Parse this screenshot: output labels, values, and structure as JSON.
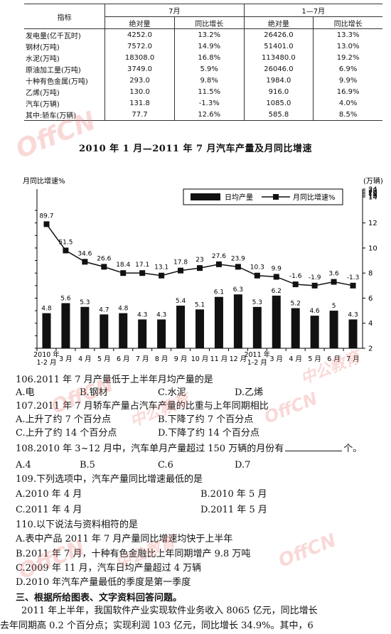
{
  "table": {
    "header": {
      "indicator": "指标",
      "group_july": "7月",
      "group_jan_jul": "1—7月",
      "abs": "绝对量",
      "yoy": "同比增长"
    },
    "rows": [
      {
        "name": "发电量(亿千瓦时)",
        "jul": "4252.0",
        "jul_g": "13.2%",
        "ytd": "26426.0",
        "ytd_g": "13.3%"
      },
      {
        "name": "钢材(万吨)",
        "jul": "7572.0",
        "jul_g": "14.9%",
        "ytd": "51401.0",
        "ytd_g": "13.0%"
      },
      {
        "name": "水泥(万吨)",
        "jul": "18308.0",
        "jul_g": "16.8%",
        "ytd": "113480.0",
        "ytd_g": "19.2%"
      },
      {
        "name": "原油加工量(万吨)",
        "jul": "3749.0",
        "jul_g": "5.9%",
        "ytd": "26046.0",
        "ytd_g": "6.9%"
      },
      {
        "name": "十种有色金属(万吨)",
        "jul": "293.0",
        "jul_g": "9.8%",
        "ytd": "1984.0",
        "ytd_g": "9.9%"
      },
      {
        "name": "乙烯(万吨)",
        "jul": "130.0",
        "jul_g": "11.5%",
        "ytd": "916.0",
        "ytd_g": "16.9%"
      },
      {
        "name": "汽车(万辆)",
        "jul": "131.8",
        "jul_g": "-1.3%",
        "ytd": "1085.0",
        "ytd_g": "4.0%"
      },
      {
        "name": "其中:轿车(万辆)",
        "jul": "77.7",
        "jul_g": "12.6%",
        "ytd": "585.8",
        "ytd_g": "8.5%"
      }
    ]
  },
  "chart_title": "2010 年 1 月—2011 年 7 月汽车产量及月同比增速",
  "chart_data": {
    "type": "bar",
    "left_axis_label": "月同比增速%",
    "right_axis_label": "(万辆)",
    "right_ylim": [
      2,
      24
    ],
    "right_ticks": [
      "2",
      "4",
      "6",
      "8",
      "10",
      "12",
      "14",
      "16",
      "18",
      "20",
      "22",
      "24"
    ],
    "legend": {
      "bar": "日均产量",
      "line": "月同比增速%"
    },
    "categories": [
      [
        "2010 年",
        "1-2 月"
      ],
      [
        "3 月"
      ],
      [
        "4 月"
      ],
      [
        "5 月"
      ],
      [
        "6 月"
      ],
      [
        "7 月"
      ],
      [
        "8 月"
      ],
      [
        "9 月"
      ],
      [
        "10 月"
      ],
      [
        "11 月"
      ],
      [
        "12 月"
      ],
      [
        "2011 年",
        "1-2 月"
      ],
      [
        "3 月"
      ],
      [
        "4 月"
      ],
      [
        "5 月"
      ],
      [
        "6 月"
      ],
      [
        "7 月"
      ]
    ],
    "series": [
      {
        "name": "日均产量",
        "kind": "bar",
        "values": [
          4.8,
          5.6,
          5.3,
          4.7,
          4.8,
          4.3,
          4.3,
          5.4,
          5.1,
          6.1,
          6.3,
          5.3,
          6.2,
          5.2,
          4.6,
          5.0,
          4.3
        ]
      },
      {
        "name": "月同比增速%",
        "kind": "line",
        "values": [
          89.7,
          51.5,
          34.6,
          26.6,
          18.4,
          17.1,
          13.1,
          17.8,
          23,
          27.6,
          23.9,
          10.3,
          9.9,
          -1.6,
          -1.9,
          3.6,
          -1.3
        ],
        "line_right_axis_positions": [
          11.9,
          9.8,
          8.9,
          8.5,
          8.0,
          8.0,
          7.8,
          8.2,
          8.4,
          8.7,
          8.5,
          7.8,
          7.7,
          7.1,
          7.0,
          7.3,
          7.0
        ]
      }
    ]
  },
  "questions": [
    {
      "stem": "106.2011 年 7 月产量低于上半年月均产量的是",
      "options": [
        "A.电",
        "B.钢材",
        "C.水泥",
        "D.乙烯"
      ]
    },
    {
      "stem": "107.2011 年 7 月轿车产量占汽车产量的比重与上年同期相比",
      "options": [
        "A.上升了约 7 个百分点",
        "B.下降了约 7 个百分点",
        "C.上升了约 14 个百分点",
        "D.下降了约 14 个百分点"
      ]
    },
    {
      "stem_pre": "108.2010 年 3~12 月中，汽车单月产量超过 150 万辆的月份有",
      "stem_post": "个。",
      "options": [
        "A.4",
        "B.5",
        "C.6",
        "D.7"
      ]
    },
    {
      "stem": "109.下列选项中，汽车产量同比增速最低的是",
      "options": [
        "A.2010 年 4 月",
        "B.2010 年 5 月",
        "C.2011 年 4 月",
        "D.2011 年 5 月"
      ]
    },
    {
      "stem": "110.以下说法与资料相符的是",
      "options": [
        "A.表中产品 2011 年 7 月产量同比增速均快于上半年",
        "B.2011 年 7 月，十种有色金融比上年同期增产 9.8 万吨",
        "C.2009 年 11 月，汽车日均产量超过 4 万辆",
        "D.2010 年汽车产量最低的季度是第一季度"
      ]
    }
  ],
  "section_heading": "三、根据所给图表、文字资料回答问题。",
  "paragraph": [
    "2011 年上半年，我国软件产业实现软件业务收入 8065 亿元，同比增长",
    "去年同期高 0.2 个百分点；实现利润 103 亿元，同比增长 34.9%。其中，6"
  ],
  "watermark": {
    "logo": "OffCN",
    "text": "中公教育"
  }
}
